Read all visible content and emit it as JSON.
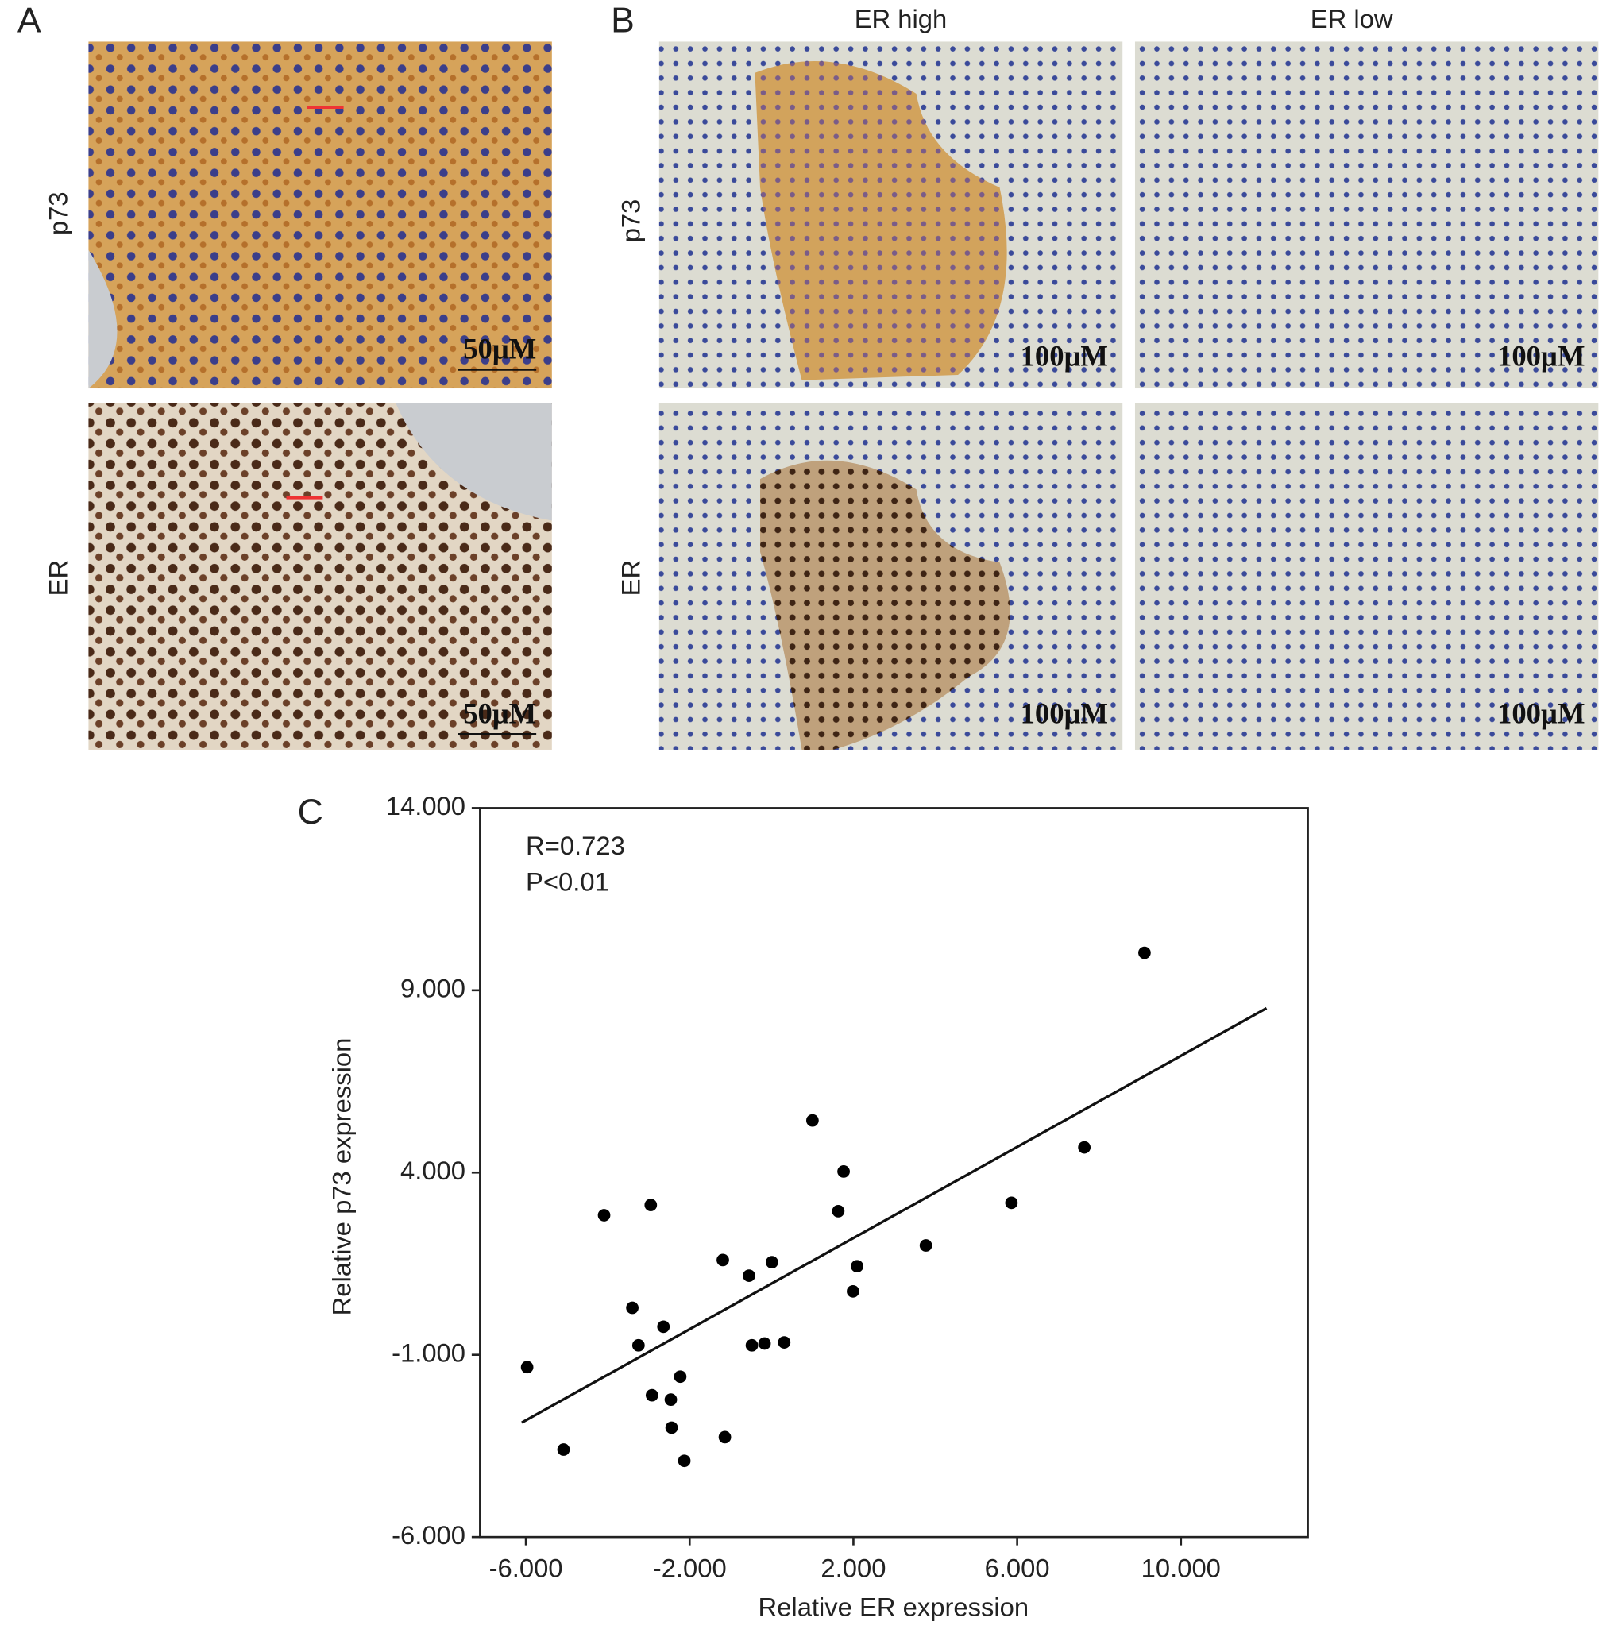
{
  "panels": {
    "A": {
      "label": "A",
      "rows": [
        "p73",
        "ER"
      ],
      "scale_bars": [
        "50μM",
        "50μM"
      ]
    },
    "B": {
      "label": "B",
      "columns": [
        "ER high",
        "ER low"
      ],
      "rows": [
        "p73",
        "ER"
      ],
      "scale_bars": [
        "100μM",
        "100μM",
        "100μM",
        "100μM"
      ]
    },
    "C": {
      "label": "C"
    }
  },
  "chart_data": {
    "type": "scatter",
    "xlabel": "Relative ER expression",
    "ylabel": "Relative p73 expression",
    "annotations": [
      "R=0.723",
      "P<0.01"
    ],
    "color": "#000000",
    "x": [
      -5.97,
      -5.08,
      -4.09,
      -3.4,
      -3.25,
      -2.95,
      -2.92,
      -2.64,
      -2.46,
      -2.44,
      -2.23,
      -2.13,
      -1.19,
      -1.14,
      -0.55,
      -0.48,
      -0.17,
      0.01,
      0.31,
      1.0,
      1.63,
      1.76,
      1.99,
      2.09,
      3.77,
      5.86,
      7.64,
      9.11
    ],
    "values": [
      -1.34,
      -3.6,
      2.83,
      0.29,
      -0.74,
      3.11,
      -2.11,
      -0.23,
      -2.23,
      -3.0,
      -1.6,
      -3.91,
      1.6,
      -3.26,
      1.17,
      -0.74,
      -0.69,
      1.54,
      -0.66,
      5.43,
      2.94,
      4.03,
      0.74,
      1.43,
      2.0,
      3.17,
      4.69,
      10.03
    ],
    "trendline": {
      "x": [
        -6.1,
        12.09
      ],
      "y": [
        -2.86,
        8.51
      ]
    },
    "xlim": [
      -7.12,
      13.1
    ],
    "ylim": [
      -6,
      14
    ],
    "xticks": [
      {
        "value": -6,
        "label": "-6.000"
      },
      {
        "value": -2,
        "label": "-2.000"
      },
      {
        "value": 2,
        "label": "2.000"
      },
      {
        "value": 6,
        "label": "6.000"
      },
      {
        "value": 10,
        "label": "10.000"
      }
    ],
    "yticks": [
      {
        "value": -6,
        "label": "-6.000"
      },
      {
        "value": -1,
        "label": "-1.000"
      },
      {
        "value": 4,
        "label": "4.000"
      },
      {
        "value": 9,
        "label": "9.000"
      },
      {
        "value": 14,
        "label": "14.000"
      }
    ],
    "grid": false
  }
}
